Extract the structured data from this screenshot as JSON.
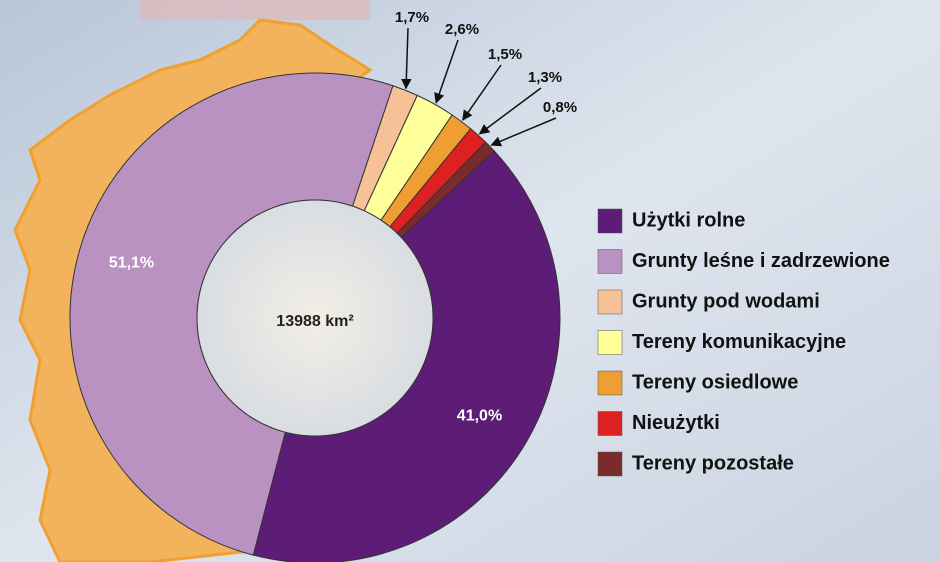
{
  "chart_data": {
    "type": "pie",
    "donut": true,
    "center_label": "13988 km²",
    "categories": [
      "Użytki rolne",
      "Grunty leśne i zadrzewione",
      "Grunty pod wodami",
      "Tereny komunikacyjne",
      "Tereny osiedlowe",
      "Nieużytki",
      "Tereny pozostałe"
    ],
    "values": [
      41.0,
      51.1,
      1.7,
      2.6,
      1.5,
      1.3,
      0.8
    ],
    "value_labels": [
      "41,0%",
      "51,1%",
      "1,7%",
      "2,6%",
      "1,5%",
      "1,3%",
      "0,8%"
    ],
    "colors": [
      "#5d1d77",
      "#b992c1",
      "#f6c196",
      "#ffff99",
      "#ef9f32",
      "#de2020",
      "#7b2b2a"
    ]
  }
}
